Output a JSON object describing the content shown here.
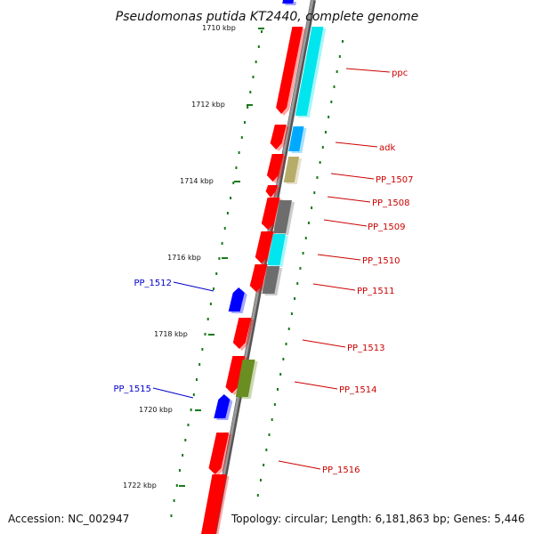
{
  "title": "Pseudomonas putida KT2440, complete genome",
  "footer": {
    "accession": "Accession: NC_002947",
    "topology": "Topology: circular; Length: 6,181,863 bp; Genes: 5,446"
  },
  "colors": {
    "backbone": "#8c8c8c",
    "tick": "#1a7a1a",
    "forward_gene": "#ff0000",
    "reverse_gene": "#0000ff",
    "label_forward": "#cc0000",
    "label_reverse": "#0000cc",
    "cyan": "#00e5ee",
    "blue_light": "#00aaff",
    "khaki": "#b7ad6a",
    "gray": "#6e6e6e",
    "olive": "#6b8e23"
  },
  "ticks": [
    {
      "label": "1710 kbp"
    },
    {
      "label": "1712 kbp"
    },
    {
      "label": "1714 kbp"
    },
    {
      "label": "1716 kbp"
    },
    {
      "label": "1718 kbp"
    },
    {
      "label": "1720 kbp"
    },
    {
      "label": "1722 kbp"
    }
  ],
  "gene_labels": [
    {
      "text": "ppc",
      "strand": "forward"
    },
    {
      "text": "adk",
      "strand": "forward"
    },
    {
      "text": "PP_1507",
      "strand": "forward"
    },
    {
      "text": "PP_1508",
      "strand": "forward"
    },
    {
      "text": "PP_1509",
      "strand": "forward"
    },
    {
      "text": "PP_1510",
      "strand": "forward"
    },
    {
      "text": "PP_1511",
      "strand": "forward"
    },
    {
      "text": "PP_1512",
      "strand": "reverse"
    },
    {
      "text": "PP_1513",
      "strand": "forward"
    },
    {
      "text": "PP_1514",
      "strand": "forward"
    },
    {
      "text": "PP_1515",
      "strand": "reverse"
    },
    {
      "text": "PP_1516",
      "strand": "forward"
    }
  ]
}
